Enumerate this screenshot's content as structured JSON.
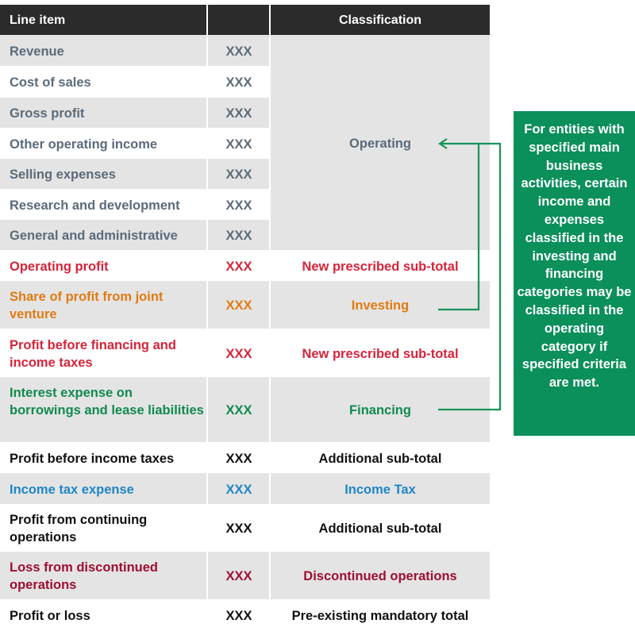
{
  "header": {
    "col1": "Line item",
    "col2": "",
    "col3": "Classification"
  },
  "operating_label": "Operating",
  "rows": [
    {
      "name": "Revenue",
      "value": "XXX",
      "cls": ""
    },
    {
      "name": "Cost of sales",
      "value": "XXX",
      "cls": ""
    },
    {
      "name": "Gross profit",
      "value": "XXX",
      "cls": ""
    },
    {
      "name": "Other operating income",
      "value": "XXX",
      "cls": ""
    },
    {
      "name": "Selling expenses",
      "value": "XXX",
      "cls": ""
    },
    {
      "name": "Research and development",
      "value": "XXX",
      "cls": ""
    },
    {
      "name": "General and administrative",
      "value": "XXX",
      "cls": ""
    },
    {
      "name": "Operating profit",
      "value": "XXX",
      "cls": "New prescribed sub-total"
    },
    {
      "name": "Share of profit from joint venture",
      "value": "XXX",
      "cls": "Investing"
    },
    {
      "name": "Profit before financing and income taxes",
      "value": "XXX",
      "cls": "New prescribed sub-total"
    },
    {
      "name": "Interest expense on borrowings and lease liabilities",
      "value": "XXX",
      "cls": "Financing"
    },
    {
      "name": "Profit before income taxes",
      "value": "XXX",
      "cls": "Additional sub-total"
    },
    {
      "name": "Income tax expense",
      "value": "XXX",
      "cls": "Income Tax"
    },
    {
      "name": "Profit from continuing operations",
      "value": "XXX",
      "cls": "Additional sub-total"
    },
    {
      "name": "Loss from discontinued operations",
      "value": "XXX",
      "cls": "Discontinued operations"
    },
    {
      "name": "Profit or loss",
      "value": "XXX",
      "cls": "Pre-existing mandatory total"
    }
  ],
  "callout_text": "For entities with specified main business activities, certain income and expenses classified in the investing and financing categories may be classified in the operating category if specified criteria are met.",
  "colors": {
    "header_bg": "#2b2b2b",
    "grey_text": "#5b6b7a",
    "red": "#d6243a",
    "orange": "#e07b13",
    "green": "#118a4e",
    "blue": "#1f86c8",
    "dark_red": "#9e1030",
    "black": "#111111",
    "callout_bg": "#0b8f5b"
  }
}
